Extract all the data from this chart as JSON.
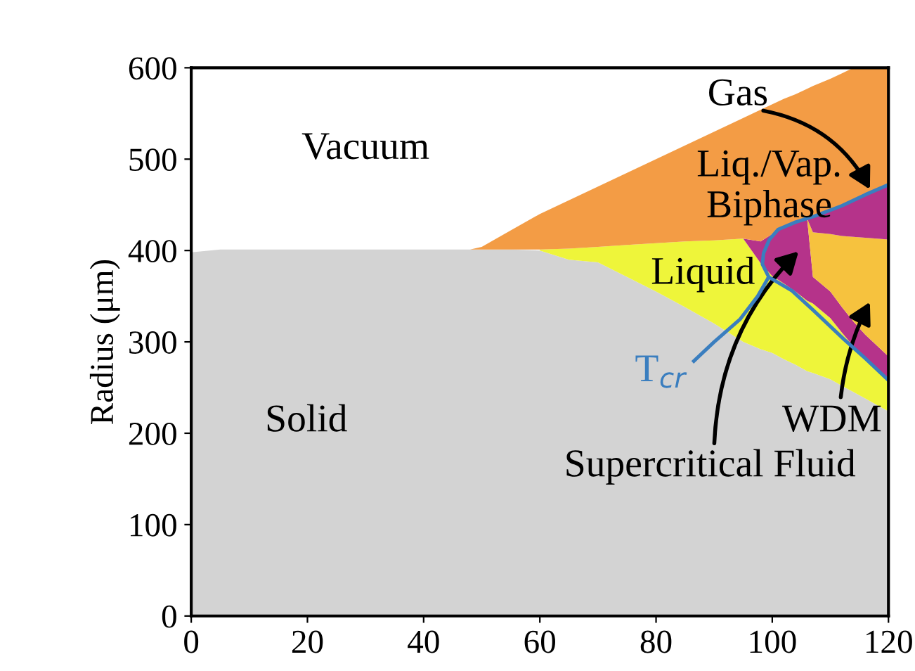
{
  "chart_data": {
    "type": "area",
    "stacked": true,
    "ylabel": "Radius (μm)",
    "x": [
      0,
      5,
      10,
      20,
      30,
      40,
      45,
      48,
      50,
      55,
      60,
      65,
      70,
      75,
      80,
      85,
      90,
      95,
      98,
      100,
      102,
      104,
      106,
      107,
      110,
      112,
      114,
      116,
      118,
      120
    ],
    "xlim": [
      0,
      120
    ],
    "xticks": [
      0,
      20,
      40,
      60,
      80,
      100,
      120
    ],
    "ylim": [
      0,
      600
    ],
    "yticks": [
      0,
      100,
      200,
      300,
      400,
      500,
      600
    ],
    "grid": false,
    "legend": false,
    "series": [
      {
        "color": "#d3d3d3",
        "values": [
          398,
          401,
          401,
          401,
          401,
          401,
          401,
          401,
          401,
          401,
          400,
          390,
          387,
          371,
          355,
          338,
          320,
          300,
          292,
          288,
          281,
          275,
          268,
          266,
          259,
          252,
          245,
          238,
          231,
          224
        ]
      },
      {
        "color": "#eef53a",
        "values": [
          null,
          null,
          null,
          null,
          null,
          null,
          null,
          null,
          null,
          null,
          1,
          12,
          17,
          35,
          53,
          72,
          91,
          113,
          94,
          84,
          83,
          80,
          77,
          76,
          67,
          58,
          50,
          45,
          39,
          34
        ]
      },
      {
        "color": "#b5338a",
        "values": [
          null,
          null,
          null,
          null,
          null,
          null,
          null,
          null,
          null,
          null,
          null,
          null,
          null,
          null,
          null,
          null,
          null,
          0,
          24,
          46,
          61,
          75,
          90,
          29,
          29,
          28,
          27,
          25,
          26,
          26
        ]
      },
      {
        "color": "#f6c23e",
        "values": [
          null,
          null,
          null,
          null,
          null,
          null,
          null,
          null,
          null,
          null,
          null,
          null,
          null,
          null,
          null,
          null,
          null,
          null,
          null,
          null,
          null,
          null,
          0,
          49,
          63,
          78,
          93,
          106,
          117,
          128
        ]
      },
      {
        "color": "#b5338a",
        "values": [
          null,
          null,
          null,
          null,
          null,
          null,
          null,
          null,
          null,
          null,
          null,
          null,
          null,
          null,
          null,
          null,
          null,
          null,
          null,
          null,
          null,
          null,
          0,
          17,
          25,
          33,
          39,
          46,
          53,
          60
        ]
      },
      {
        "color": "#f39c45",
        "values": [
          null,
          null,
          null,
          null,
          null,
          null,
          null,
          0,
          3,
          21,
          39,
          53,
          66,
          79,
          92,
          105,
          119,
          132,
          144,
          142,
          141,
          141,
          142,
          143,
          145,
          145,
          146,
          140,
          134,
          128
        ]
      },
      {
        "type": "line",
        "name": "T$_{cr}$",
        "color": "#3a7ebf",
        "x": [
          86.5,
          90,
          94.5,
          97.5,
          99.4,
          98.3,
          98.5,
          99.5,
          101,
          104,
          107.4,
          112,
          116,
          120
        ],
        "values": [
          279,
          300,
          325,
          350,
          371,
          385,
          397,
          412,
          423,
          431,
          438,
          449,
          461,
          472
        ]
      },
      {
        "type": "line",
        "color": "#3a7ebf",
        "x": [
          99.4,
          103.4,
          107,
          112.3,
          116,
          120
        ],
        "values": [
          371,
          356,
          335,
          303,
          282,
          258
        ]
      }
    ],
    "annotations": [
      "Vacuum",
      "Solid",
      "Liquid",
      "Liq./Vap.\nBiphase",
      "Gas",
      "Supercritical Fluid",
      "WDM"
    ]
  }
}
